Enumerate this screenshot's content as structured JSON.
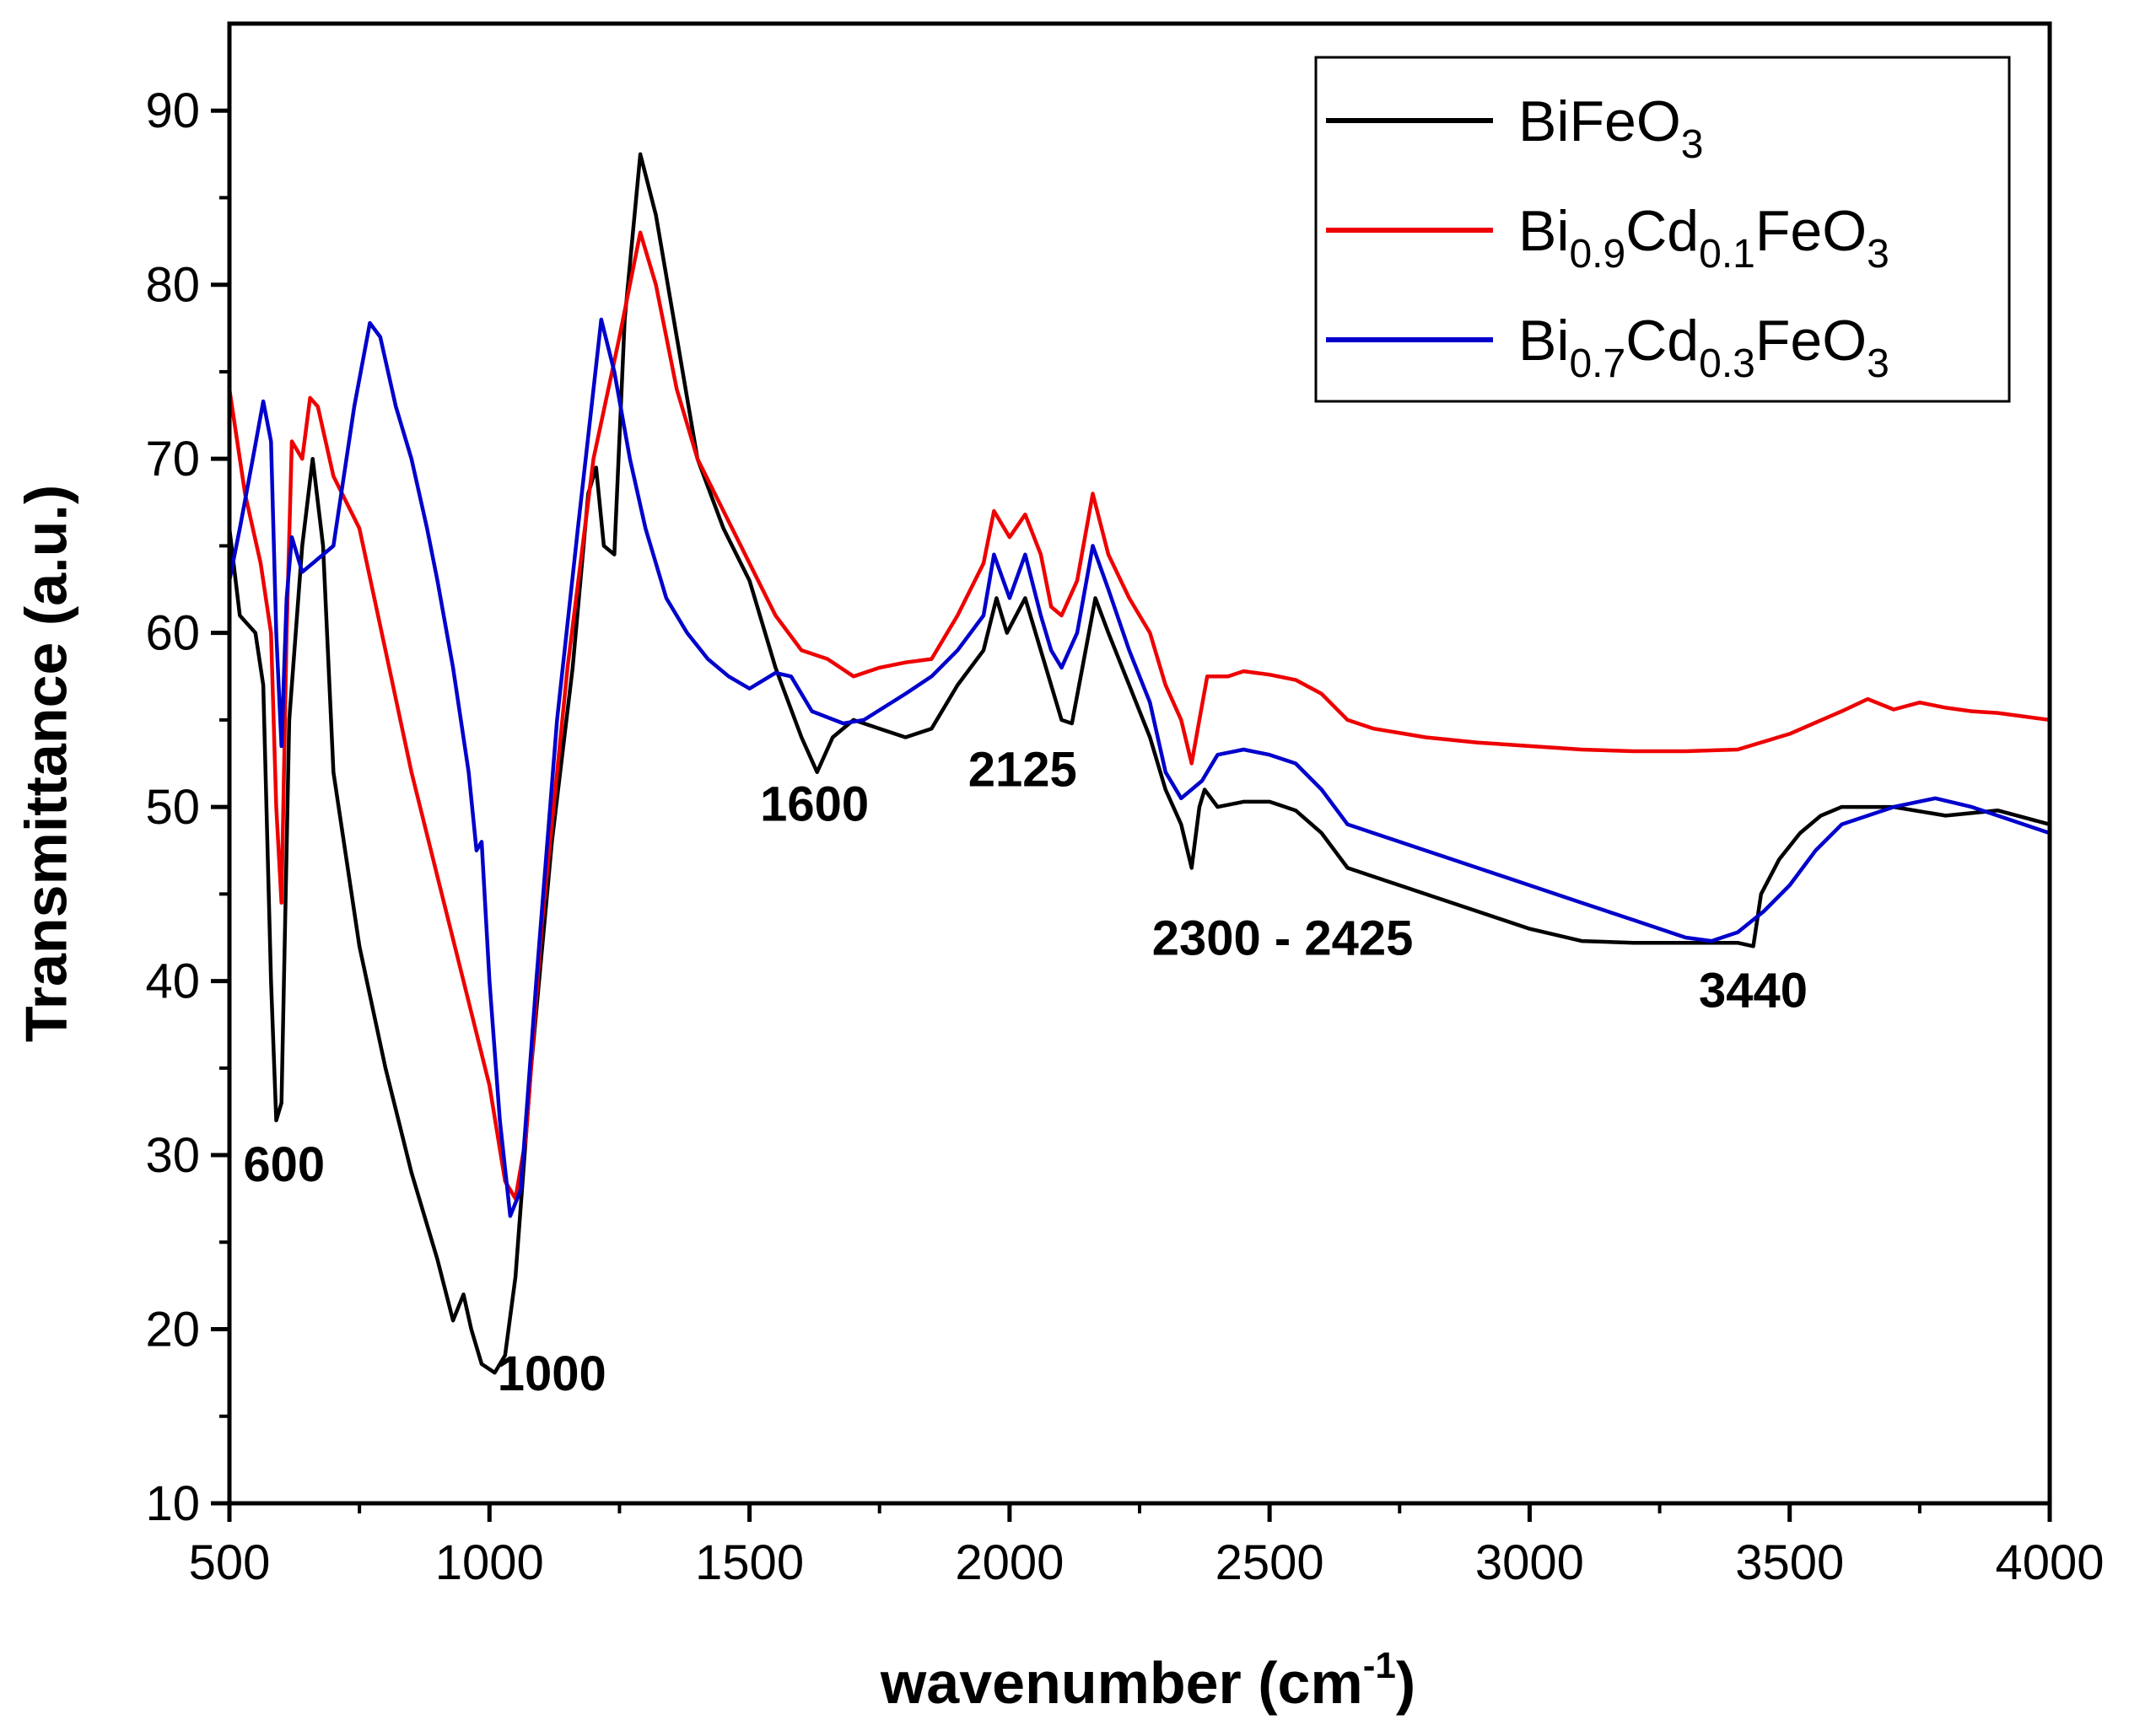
{
  "chart_data": {
    "type": "line",
    "title": "",
    "xlabel": "wavenumber (cm",
    "xlabel_sup": "-1",
    "xlabel_end": ")",
    "ylabel": "Transmittance (a.u.)",
    "xlim": [
      500,
      4000
    ],
    "ylim": [
      10,
      95
    ],
    "xticks": [
      500,
      1000,
      1500,
      2000,
      2500,
      3000,
      3500,
      4000
    ],
    "yticks": [
      10,
      20,
      30,
      40,
      50,
      60,
      70,
      80,
      90
    ],
    "grid": false,
    "legend_position": "top-right",
    "series": [
      {
        "name": "BiFeO3",
        "label_base": "BiFeO",
        "label_parts": [
          [
            "BiFeO",
            ""
          ],
          [
            "3",
            "sub"
          ]
        ],
        "color": "#000000",
        "points": [
          [
            500,
            66
          ],
          [
            520,
            61
          ],
          [
            550,
            60
          ],
          [
            565,
            57
          ],
          [
            580,
            40
          ],
          [
            590,
            32
          ],
          [
            600,
            33
          ],
          [
            615,
            55
          ],
          [
            640,
            65
          ],
          [
            660,
            70
          ],
          [
            680,
            65
          ],
          [
            700,
            52
          ],
          [
            750,
            42
          ],
          [
            800,
            35
          ],
          [
            850,
            29
          ],
          [
            900,
            24
          ],
          [
            930,
            20.5
          ],
          [
            950,
            22
          ],
          [
            965,
            20
          ],
          [
            985,
            18
          ],
          [
            1010,
            17.5
          ],
          [
            1030,
            18.5
          ],
          [
            1050,
            23
          ],
          [
            1080,
            35
          ],
          [
            1120,
            48
          ],
          [
            1160,
            58
          ],
          [
            1190,
            68
          ],
          [
            1205,
            69.5
          ],
          [
            1220,
            65
          ],
          [
            1240,
            64.5
          ],
          [
            1260,
            78
          ],
          [
            1290,
            87.5
          ],
          [
            1320,
            84
          ],
          [
            1360,
            77
          ],
          [
            1400,
            70
          ],
          [
            1450,
            66
          ],
          [
            1500,
            63
          ],
          [
            1550,
            58
          ],
          [
            1600,
            54
          ],
          [
            1630,
            52
          ],
          [
            1660,
            54
          ],
          [
            1700,
            55
          ],
          [
            1750,
            54.5
          ],
          [
            1800,
            54
          ],
          [
            1850,
            54.5
          ],
          [
            1900,
            57
          ],
          [
            1950,
            59
          ],
          [
            1975,
            62
          ],
          [
            1995,
            60
          ],
          [
            2030,
            62
          ],
          [
            2070,
            58
          ],
          [
            2100,
            55
          ],
          [
            2120,
            54.8
          ],
          [
            2140,
            58
          ],
          [
            2165,
            62
          ],
          [
            2190,
            60
          ],
          [
            2230,
            57
          ],
          [
            2270,
            54
          ],
          [
            2300,
            51
          ],
          [
            2330,
            49
          ],
          [
            2350,
            46.5
          ],
          [
            2365,
            50
          ],
          [
            2375,
            51
          ],
          [
            2400,
            50
          ],
          [
            2450,
            50.3
          ],
          [
            2500,
            50.3
          ],
          [
            2550,
            49.8
          ],
          [
            2600,
            48.5
          ],
          [
            2650,
            46.5
          ],
          [
            2700,
            46
          ],
          [
            2800,
            45
          ],
          [
            2900,
            44
          ],
          [
            3000,
            43
          ],
          [
            3100,
            42.3
          ],
          [
            3200,
            42.2
          ],
          [
            3300,
            42.2
          ],
          [
            3400,
            42.2
          ],
          [
            3430,
            42
          ],
          [
            3445,
            45
          ],
          [
            3480,
            47
          ],
          [
            3520,
            48.5
          ],
          [
            3560,
            49.5
          ],
          [
            3600,
            50
          ],
          [
            3700,
            50
          ],
          [
            3800,
            49.5
          ],
          [
            3900,
            49.8
          ],
          [
            4000,
            49
          ]
        ]
      },
      {
        "name": "Bi0.9Cd0.1FeO3",
        "label_base": "BiCdFeO",
        "label_parts": [
          [
            "Bi",
            ""
          ],
          [
            "0.9",
            "sub"
          ],
          [
            "Cd",
            ""
          ],
          [
            "0.1",
            "sub"
          ],
          [
            "FeO",
            ""
          ],
          [
            "3",
            "sub"
          ]
        ],
        "color": "#ee0000",
        "points": [
          [
            500,
            74
          ],
          [
            530,
            68
          ],
          [
            560,
            64
          ],
          [
            580,
            60
          ],
          [
            590,
            50
          ],
          [
            600,
            44.5
          ],
          [
            610,
            60
          ],
          [
            620,
            71
          ],
          [
            640,
            70
          ],
          [
            655,
            73.5
          ],
          [
            670,
            73
          ],
          [
            700,
            69
          ],
          [
            750,
            66
          ],
          [
            800,
            59
          ],
          [
            850,
            52
          ],
          [
            900,
            46
          ],
          [
            950,
            40
          ],
          [
            1000,
            34
          ],
          [
            1030,
            28.5
          ],
          [
            1050,
            27.5
          ],
          [
            1070,
            31
          ],
          [
            1100,
            43
          ],
          [
            1150,
            58
          ],
          [
            1200,
            70
          ],
          [
            1250,
            77
          ],
          [
            1290,
            83
          ],
          [
            1320,
            80
          ],
          [
            1360,
            74
          ],
          [
            1400,
            70
          ],
          [
            1450,
            67
          ],
          [
            1500,
            64
          ],
          [
            1550,
            61
          ],
          [
            1600,
            59
          ],
          [
            1650,
            58.5
          ],
          [
            1700,
            57.5
          ],
          [
            1750,
            58
          ],
          [
            1800,
            58.3
          ],
          [
            1850,
            58.5
          ],
          [
            1900,
            61
          ],
          [
            1950,
            64
          ],
          [
            1970,
            67
          ],
          [
            2000,
            65.5
          ],
          [
            2030,
            66.8
          ],
          [
            2060,
            64.5
          ],
          [
            2080,
            61.5
          ],
          [
            2100,
            61
          ],
          [
            2130,
            63
          ],
          [
            2160,
            68
          ],
          [
            2190,
            64.5
          ],
          [
            2230,
            62
          ],
          [
            2270,
            60
          ],
          [
            2300,
            57
          ],
          [
            2330,
            55
          ],
          [
            2350,
            52.5
          ],
          [
            2365,
            55
          ],
          [
            2380,
            57.5
          ],
          [
            2420,
            57.5
          ],
          [
            2450,
            57.8
          ],
          [
            2500,
            57.6
          ],
          [
            2550,
            57.3
          ],
          [
            2600,
            56.5
          ],
          [
            2650,
            55
          ],
          [
            2700,
            54.5
          ],
          [
            2800,
            54
          ],
          [
            2900,
            53.7
          ],
          [
            3000,
            53.5
          ],
          [
            3100,
            53.3
          ],
          [
            3200,
            53.2
          ],
          [
            3300,
            53.2
          ],
          [
            3400,
            53.3
          ],
          [
            3500,
            54.2
          ],
          [
            3600,
            55.5
          ],
          [
            3650,
            56.2
          ],
          [
            3700,
            55.6
          ],
          [
            3750,
            56
          ],
          [
            3800,
            55.7
          ],
          [
            3850,
            55.5
          ],
          [
            3900,
            55.4
          ],
          [
            4000,
            55
          ]
        ]
      },
      {
        "name": "Bi0.7Cd0.3FeO3",
        "label_base": "BiCdFeO",
        "label_parts": [
          [
            "Bi",
            ""
          ],
          [
            "0.7",
            "sub"
          ],
          [
            "Cd",
            ""
          ],
          [
            "0.3",
            "sub"
          ],
          [
            "FeO",
            ""
          ],
          [
            "3",
            "sub"
          ]
        ],
        "color": "#0000cc",
        "points": [
          [
            500,
            63
          ],
          [
            520,
            66
          ],
          [
            545,
            70
          ],
          [
            565,
            73.3
          ],
          [
            580,
            71
          ],
          [
            590,
            60
          ],
          [
            600,
            53.5
          ],
          [
            610,
            62
          ],
          [
            620,
            65.5
          ],
          [
            640,
            63.5
          ],
          [
            660,
            64
          ],
          [
            700,
            65
          ],
          [
            740,
            73
          ],
          [
            770,
            77.8
          ],
          [
            790,
            77
          ],
          [
            820,
            73
          ],
          [
            850,
            70
          ],
          [
            880,
            66
          ],
          [
            900,
            63
          ],
          [
            930,
            58
          ],
          [
            960,
            52
          ],
          [
            975,
            47.5
          ],
          [
            985,
            48
          ],
          [
            1000,
            40
          ],
          [
            1020,
            32
          ],
          [
            1040,
            26.5
          ],
          [
            1060,
            28
          ],
          [
            1090,
            40
          ],
          [
            1130,
            55
          ],
          [
            1170,
            66
          ],
          [
            1200,
            74
          ],
          [
            1215,
            78
          ],
          [
            1240,
            75
          ],
          [
            1270,
            70
          ],
          [
            1300,
            66
          ],
          [
            1340,
            62
          ],
          [
            1380,
            60
          ],
          [
            1420,
            58.5
          ],
          [
            1460,
            57.5
          ],
          [
            1500,
            56.8
          ],
          [
            1550,
            57.7
          ],
          [
            1580,
            57.5
          ],
          [
            1620,
            55.5
          ],
          [
            1680,
            54.8
          ],
          [
            1720,
            55
          ],
          [
            1800,
            56.5
          ],
          [
            1850,
            57.5
          ],
          [
            1900,
            59
          ],
          [
            1950,
            61
          ],
          [
            1970,
            64.5
          ],
          [
            2000,
            62
          ],
          [
            2030,
            64.5
          ],
          [
            2060,
            61
          ],
          [
            2080,
            59
          ],
          [
            2100,
            58
          ],
          [
            2130,
            60
          ],
          [
            2160,
            65
          ],
          [
            2190,
            62.5
          ],
          [
            2230,
            59
          ],
          [
            2270,
            56
          ],
          [
            2300,
            52
          ],
          [
            2330,
            50.5
          ],
          [
            2370,
            51.5
          ],
          [
            2400,
            53
          ],
          [
            2450,
            53.3
          ],
          [
            2500,
            53
          ],
          [
            2550,
            52.5
          ],
          [
            2600,
            51
          ],
          [
            2650,
            49
          ],
          [
            2700,
            48.5
          ],
          [
            2800,
            47.5
          ],
          [
            2900,
            46.5
          ],
          [
            3000,
            45.5
          ],
          [
            3100,
            44.5
          ],
          [
            3200,
            43.5
          ],
          [
            3300,
            42.5
          ],
          [
            3350,
            42.3
          ],
          [
            3400,
            42.8
          ],
          [
            3450,
            44
          ],
          [
            3500,
            45.5
          ],
          [
            3550,
            47.5
          ],
          [
            3600,
            49
          ],
          [
            3700,
            50
          ],
          [
            3780,
            50.5
          ],
          [
            3850,
            50
          ],
          [
            3900,
            49.5
          ],
          [
            4000,
            48.5
          ]
        ]
      }
    ],
    "annotations": [
      {
        "text": "600",
        "x": 605,
        "y": 28.5
      },
      {
        "text": "1000",
        "x": 1120,
        "y": 16.5
      },
      {
        "text": "1600",
        "x": 1625,
        "y": 49.2
      },
      {
        "text": "2125",
        "x": 2025,
        "y": 51.2
      },
      {
        "text": "2300 - 2425",
        "x": 2525,
        "y": 41.5
      },
      {
        "text": "3440",
        "x": 3430,
        "y": 38.5
      }
    ]
  }
}
